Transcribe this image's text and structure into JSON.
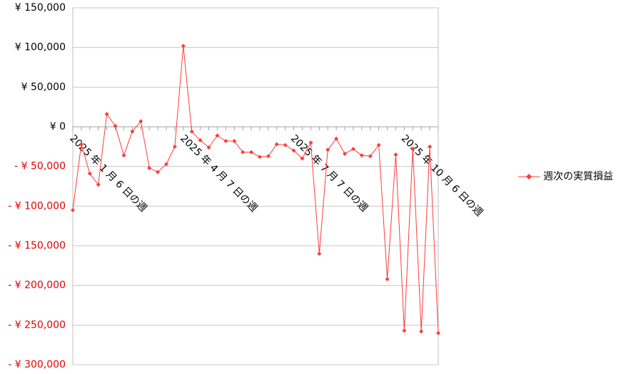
{
  "chart_data": {
    "type": "line",
    "categories": [
      "2025 年 1 月 6 日の週",
      null,
      null,
      null,
      null,
      null,
      null,
      null,
      null,
      null,
      null,
      null,
      null,
      "2025 年 4 月 7 日の週",
      null,
      null,
      null,
      null,
      null,
      null,
      null,
      null,
      null,
      null,
      null,
      null,
      "2025 年 7 月 7 日の週",
      null,
      null,
      null,
      null,
      null,
      null,
      null,
      null,
      null,
      null,
      null,
      null,
      "2025 年 10 月 6 日の週",
      null,
      null,
      null,
      null
    ],
    "series": [
      {
        "name": "週次の実質損益",
        "color": "#ff3b3b",
        "values": [
          -105000,
          -22000,
          -59000,
          -73000,
          16000,
          1000,
          -36000,
          -6000,
          7000,
          -52000,
          -57000,
          -47000,
          -25000,
          102000,
          -6000,
          -17000,
          -26000,
          -11000,
          -18000,
          -18000,
          -32000,
          -32000,
          -38000,
          -37000,
          -22000,
          -23000,
          -30000,
          -40000,
          -20000,
          -160000,
          -29000,
          -15000,
          -34000,
          -28000,
          -36000,
          -37000,
          -23000,
          -192000,
          -35000,
          -257000,
          -28000,
          -258000,
          -25000,
          -260000
        ]
      }
    ],
    "ylim": [
      -300000,
      150000
    ],
    "yticks": [
      {
        "value": -300000,
        "label": "- ¥ 300,000"
      },
      {
        "value": -250000,
        "label": "- ¥ 250,000"
      },
      {
        "value": -200000,
        "label": "- ¥ 200,000"
      },
      {
        "value": -150000,
        "label": "- ¥ 150,000"
      },
      {
        "value": -100000,
        "label": "- ¥ 100,000"
      },
      {
        "value": -50000,
        "label": "- ¥ 50,000"
      },
      {
        "value": 0,
        "label": "¥ 0"
      },
      {
        "value": 50000,
        "label": "¥ 50,000"
      },
      {
        "value": 100000,
        "label": "¥ 100,000"
      },
      {
        "value": 150000,
        "label": "¥ 150,000"
      }
    ],
    "grid": true,
    "legend": "right"
  }
}
